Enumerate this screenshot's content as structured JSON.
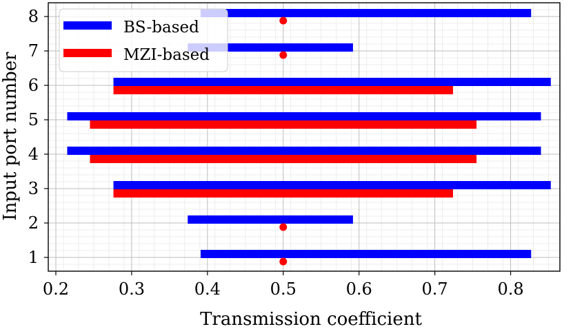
{
  "chart_data": {
    "type": "range-bar",
    "xlabel": "Transmission coefficient",
    "ylabel": "Input port number",
    "xlim": [
      0.19,
      0.865
    ],
    "ylim": [
      0.6,
      8.4
    ],
    "x_major_ticks": [
      0.2,
      0.3,
      0.4,
      0.5,
      0.6,
      0.7,
      0.8
    ],
    "x_tick_labels": [
      "0.2",
      "0.3",
      "0.4",
      "0.5",
      "0.6",
      "0.7",
      "0.8"
    ],
    "y_ticks": [
      1,
      2,
      3,
      4,
      5,
      6,
      7,
      8
    ],
    "y_tick_labels": [
      "1",
      "2",
      "3",
      "4",
      "5",
      "6",
      "7",
      "8"
    ],
    "grid": true,
    "legend": {
      "placement": "top-left",
      "entries": [
        {
          "label": "BS-based",
          "color": "#0000ff"
        },
        {
          "label": "MZI-based",
          "color": "#ff0000"
        }
      ]
    },
    "series": [
      {
        "name": "BS-based",
        "color": "#0000ff",
        "ranges": [
          {
            "port": 1,
            "min": 0.391,
            "max": 0.827
          },
          {
            "port": 2,
            "min": 0.374,
            "max": 0.592
          },
          {
            "port": 3,
            "min": 0.276,
            "max": 0.853
          },
          {
            "port": 4,
            "min": 0.215,
            "max": 0.84
          },
          {
            "port": 5,
            "min": 0.215,
            "max": 0.84
          },
          {
            "port": 6,
            "min": 0.276,
            "max": 0.853
          },
          {
            "port": 7,
            "min": 0.374,
            "max": 0.592
          },
          {
            "port": 8,
            "min": 0.391,
            "max": 0.827
          }
        ]
      },
      {
        "name": "MZI-based",
        "color": "#ff0000",
        "ranges": [
          {
            "port": 1,
            "min": 0.5,
            "max": 0.5
          },
          {
            "port": 2,
            "min": 0.5,
            "max": 0.5
          },
          {
            "port": 3,
            "min": 0.276,
            "max": 0.724
          },
          {
            "port": 4,
            "min": 0.245,
            "max": 0.755
          },
          {
            "port": 5,
            "min": 0.245,
            "max": 0.755
          },
          {
            "port": 6,
            "min": 0.276,
            "max": 0.724
          },
          {
            "port": 7,
            "min": 0.5,
            "max": 0.5
          },
          {
            "port": 8,
            "min": 0.5,
            "max": 0.5
          }
        ]
      }
    ]
  }
}
